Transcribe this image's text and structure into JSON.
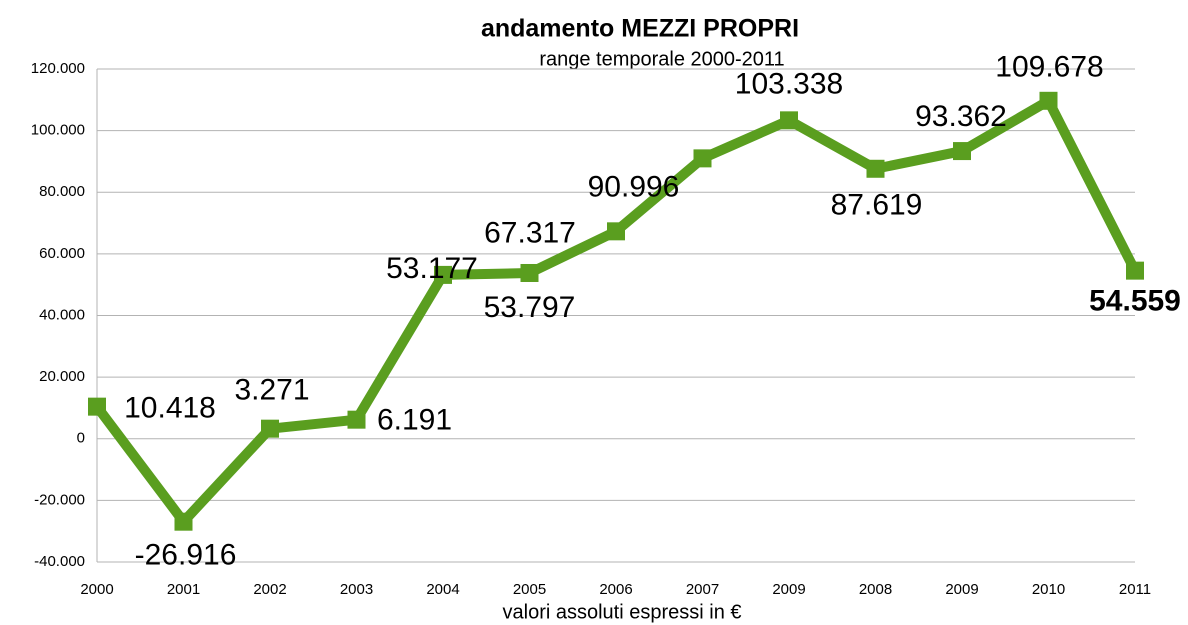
{
  "chart_data": {
    "type": "line",
    "title": "andamento MEZZI PROPRI",
    "subtitle": "range temporale 2000-2011",
    "x_label": "valori assoluti espressi in €",
    "categories": [
      "2000",
      "2001",
      "2002",
      "2003",
      "2004",
      "2005",
      "2006",
      "2007",
      "2009",
      "2008",
      "2009",
      "2010",
      "2011"
    ],
    "series": [
      {
        "name": "mezzi propri",
        "color": "#5a9e1f",
        "values": [
          10418,
          -26916,
          3271,
          6191,
          53177,
          53797,
          67317,
          90996,
          103338,
          87619,
          93362,
          109678,
          54559
        ],
        "value_labels": [
          "10.418",
          "-26.916",
          "3.271",
          "6.191",
          "53.177",
          "53.797",
          "67.317",
          "90.996",
          "103.338",
          "87.619",
          "93.362",
          "109.678",
          "54.559"
        ]
      }
    ],
    "ylim": [
      -40000,
      120000
    ],
    "yticks": [
      {
        "value": -40000,
        "label": "-40.000"
      },
      {
        "value": -20000,
        "label": "-20.000"
      },
      0,
      {
        "value": 20000,
        "label": "20.000"
      },
      {
        "value": 40000,
        "label": "40.000"
      },
      {
        "value": 60000,
        "label": "60.000"
      },
      {
        "value": 80000,
        "label": "80.000"
      },
      {
        "value": 100000,
        "label": "100.000"
      },
      {
        "value": 120000,
        "label": "120.000"
      }
    ],
    "grid": true
  }
}
